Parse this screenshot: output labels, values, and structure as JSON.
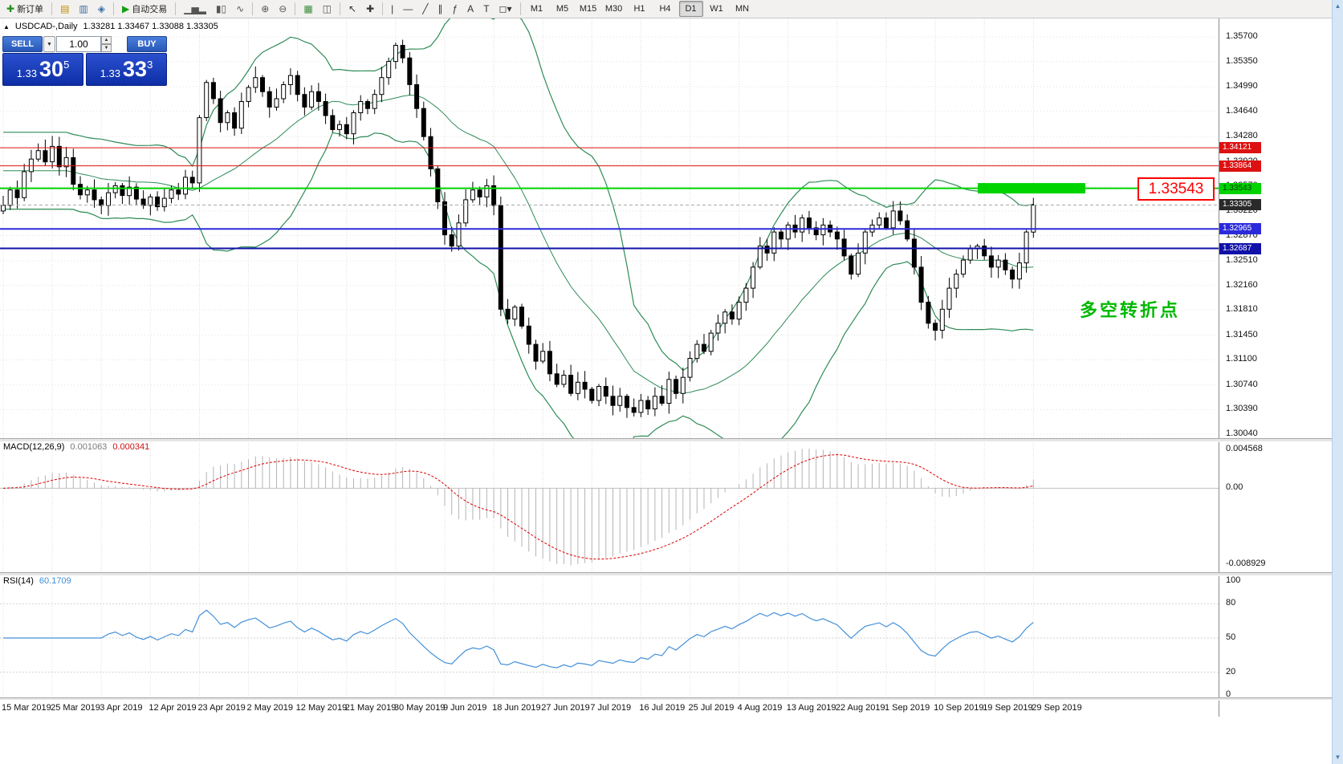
{
  "toolbar": {
    "items": [
      {
        "name": "new-order-button",
        "glyph": "✚",
        "color": "#1e8e1e",
        "label": "新订单"
      },
      {
        "separator": true
      },
      {
        "name": "market-watch-button",
        "glyph": "▤",
        "color": "#c08a00"
      },
      {
        "name": "data-window-button",
        "glyph": "▥",
        "color": "#3a6ea5"
      },
      {
        "name": "navigator-button",
        "glyph": "◈",
        "color": "#3a6ea5"
      },
      {
        "separator": true
      },
      {
        "name": "autotrading-button",
        "glyph": "▶",
        "color": "#12a012",
        "label": "自动交易"
      },
      {
        "separator": true
      },
      {
        "name": "bar-chart-button",
        "glyph": "▁▅▂",
        "color": "#555555"
      },
      {
        "name": "candlestick-chart-button",
        "glyph": "▮▯",
        "color": "#555555"
      },
      {
        "name": "line-chart-button",
        "glyph": "∿",
        "color": "#555555"
      },
      {
        "separator": true
      },
      {
        "name": "zoom-in-button",
        "glyph": "⊕",
        "color": "#555555"
      },
      {
        "name": "zoom-out-button",
        "glyph": "⊖",
        "color": "#555555"
      },
      {
        "separator": true
      },
      {
        "name": "grid-button",
        "glyph": "▦",
        "color": "#3a8a3a"
      },
      {
        "name": "tile-windows-button",
        "glyph": "◫",
        "color": "#555555"
      },
      {
        "separator": true
      },
      {
        "name": "cursor-button",
        "glyph": "↖",
        "color": "#333333"
      },
      {
        "name": "crosshair-button",
        "glyph": "✚",
        "color": "#333333"
      },
      {
        "separator": true
      },
      {
        "name": "vertical-line-button",
        "glyph": "|",
        "color": "#333333"
      },
      {
        "name": "horizontal-line-button",
        "glyph": "—",
        "color": "#333333"
      },
      {
        "name": "trendline-button",
        "glyph": "╱",
        "color": "#333333"
      },
      {
        "name": "channel-button",
        "glyph": "∥",
        "color": "#333333"
      },
      {
        "name": "fibonacci-button",
        "glyph": "ƒ",
        "color": "#333333"
      },
      {
        "name": "text-button",
        "glyph": "A",
        "color": "#333333"
      },
      {
        "name": "label-button",
        "glyph": "T",
        "color": "#333333"
      },
      {
        "name": "shapes-button",
        "glyph": "◻▾",
        "color": "#333333"
      }
    ],
    "timeframes": [
      {
        "label": "M1",
        "active": false
      },
      {
        "label": "M5",
        "active": false
      },
      {
        "label": "M15",
        "active": false
      },
      {
        "label": "M30",
        "active": false
      },
      {
        "label": "H1",
        "active": false
      },
      {
        "label": "H4",
        "active": false
      },
      {
        "label": "D1",
        "active": true
      },
      {
        "label": "W1",
        "active": false
      },
      {
        "label": "MN",
        "active": false
      }
    ]
  },
  "chart": {
    "title": "USDCAD-,Daily",
    "ohlc": "1.33281 1.33467 1.33088 1.33305"
  },
  "trade_panel": {
    "sell_label": "SELL",
    "buy_label": "BUY",
    "volume": "1.00",
    "sell_price": {
      "base": "1.33",
      "big": "30",
      "sup": "5"
    },
    "buy_price": {
      "base": "1.33",
      "big": "33",
      "sup": "3"
    }
  },
  "price_axis": {
    "labels": [
      "1.35700",
      "1.35350",
      "1.34990",
      "1.34640",
      "1.34280",
      "1.33920",
      "1.33570",
      "1.33220",
      "1.32870",
      "1.32510",
      "1.32160",
      "1.31810",
      "1.31450",
      "1.31100",
      "1.30740",
      "1.30390",
      "1.30040"
    ]
  },
  "hlines": [
    {
      "price": "1.34121",
      "color": "#dd1111",
      "tag_bg": "#dd1111",
      "tag_fg": "#ffffff",
      "width": 1
    },
    {
      "price": "1.33864",
      "color": "#dd1111",
      "tag_bg": "#dd1111",
      "tag_fg": "#ffffff",
      "width": 1
    },
    {
      "price": "1.33543",
      "color": "#00d300",
      "tag_bg": "#00d300",
      "tag_fg": "#073b07",
      "width": 2
    },
    {
      "price": "1.32965",
      "color": "#2b2bdb",
      "tag_bg": "#2b2bdb",
      "tag_fg": "#ffffff",
      "width": 2
    },
    {
      "price": "1.32687",
      "color": "#1111a8",
      "tag_bg": "#1111a8",
      "tag_fg": "#ffffff",
      "width": 2
    }
  ],
  "current_price": {
    "label": "1.33305",
    "tag_bg": "#2a2a2a",
    "tag_fg": "#ffffff"
  },
  "macd": {
    "name": "MACD(12,26,9)",
    "value": "0.001063",
    "signal": "0.000341",
    "scale": [
      "0.004568",
      "0.00",
      "-0.008929"
    ]
  },
  "rsi": {
    "name": "RSI(14)",
    "value": "60.1709",
    "scale": [
      "100",
      "80",
      "50",
      "20",
      "0"
    ]
  },
  "annotation": {
    "text": "多空转折点"
  },
  "callout": {
    "text": "1.33543"
  },
  "dates": [
    "15 Mar 2019",
    "25 Mar 2019",
    "3 Apr 2019",
    "12 Apr 2019",
    "23 Apr 2019",
    "2 May 2019",
    "12 May 2019",
    "21 May 2019",
    "30 May 2019",
    "9 Jun 2019",
    "18 Jun 2019",
    "27 Jun 2019",
    "7 Jul 2019",
    "16 Jul 2019",
    "25 Jul 2019",
    "4 Aug 2019",
    "13 Aug 2019",
    "22 Aug 2019",
    "1 Sep 2019",
    "10 Sep 2019",
    "19 Sep 2019",
    "29 Sep 2019"
  ],
  "chart_data": {
    "type": "candlestick",
    "symbol": "USDCAD",
    "timeframe": "Daily",
    "ylim": [
      1.3004,
      1.357
    ],
    "closes": [
      1.333,
      1.3352,
      1.3341,
      1.3378,
      1.3396,
      1.3408,
      1.3392,
      1.3414,
      1.3385,
      1.3398,
      1.336,
      1.3345,
      1.3352,
      1.3338,
      1.333,
      1.3348,
      1.3358,
      1.3344,
      1.3356,
      1.3339,
      1.333,
      1.3342,
      1.3328,
      1.334,
      1.3352,
      1.3346,
      1.337,
      1.3362,
      1.3455,
      1.3505,
      1.3482,
      1.3448,
      1.3462,
      1.344,
      1.3478,
      1.3498,
      1.3512,
      1.3492,
      1.347,
      1.3482,
      1.3502,
      1.3515,
      1.3488,
      1.347,
      1.3492,
      1.3478,
      1.3458,
      1.3438,
      1.3445,
      1.3432,
      1.3462,
      1.3478,
      1.3468,
      1.3488,
      1.3512,
      1.3535,
      1.3558,
      1.354,
      1.3502,
      1.3468,
      1.3428,
      1.3382,
      1.3335,
      1.3288,
      1.3272,
      1.3305,
      1.3338,
      1.3352,
      1.3342,
      1.3358,
      1.333,
      1.3182,
      1.3168,
      1.3185,
      1.3158,
      1.3132,
      1.3108,
      1.3122,
      1.309,
      1.3075,
      1.3088,
      1.3062,
      1.3078,
      1.3068,
      1.3052,
      1.3072,
      1.3058,
      1.3045,
      1.3058,
      1.3042,
      1.3035,
      1.3052,
      1.304,
      1.3058,
      1.3048,
      1.3082,
      1.3062,
      1.3085,
      1.3112,
      1.3132,
      1.3122,
      1.3148,
      1.3162,
      1.3178,
      1.3168,
      1.3192,
      1.3212,
      1.3242,
      1.3272,
      1.3262,
      1.3292,
      1.3282,
      1.3302,
      1.3292,
      1.3312,
      1.3298,
      1.3288,
      1.3302,
      1.3292,
      1.3282,
      1.3258,
      1.3232,
      1.3262,
      1.3292,
      1.3302,
      1.3312,
      1.3298,
      1.3322,
      1.3308,
      1.3282,
      1.3242,
      1.3192,
      1.3162,
      1.3152,
      1.3182,
      1.3212,
      1.3232,
      1.3252,
      1.3268,
      1.3272,
      1.3258,
      1.3242,
      1.3252,
      1.3238,
      1.3225,
      1.3248,
      1.3292,
      1.33305
    ],
    "indicators": {
      "bollinger": {
        "period": 20,
        "deviation": 2
      },
      "macd": {
        "fast": 12,
        "slow": 26,
        "signal": 9,
        "ylim": [
          -0.008929,
          0.004568
        ]
      },
      "rsi": {
        "period": 14,
        "levels": [
          20,
          50,
          80
        ],
        "ylim": [
          0,
          100
        ]
      }
    }
  }
}
